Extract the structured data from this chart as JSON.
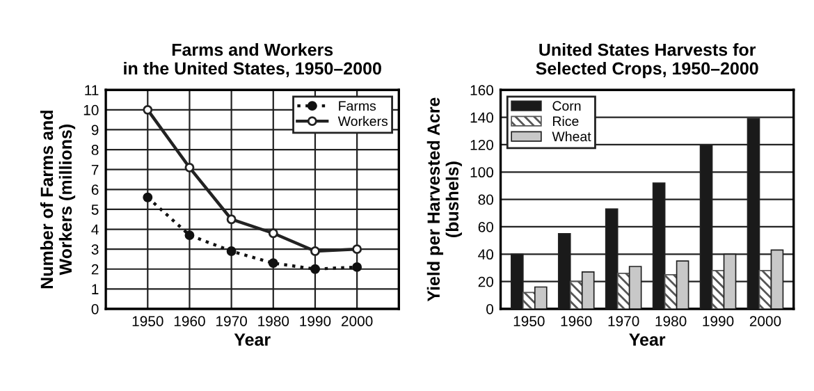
{
  "chart_data": [
    {
      "type": "line",
      "title": "Farms and Workers\nin the United States, 1950–2000",
      "xlabel": "Year",
      "ylabel": "Number of Farms and\nWorkers (millions)",
      "x": [
        1950,
        1960,
        1970,
        1980,
        1990,
        2000
      ],
      "series": [
        {
          "name": "Farms",
          "color": "#111111",
          "values": [
            5.6,
            3.7,
            2.9,
            2.3,
            2.0,
            2.1
          ],
          "line_style": "dotted",
          "marker": "circle"
        },
        {
          "name": "Workers",
          "color": "#222222",
          "values": [
            10.0,
            7.1,
            4.5,
            3.8,
            2.9,
            3.0
          ],
          "line_style": "solid",
          "marker": "circle"
        }
      ],
      "xlim": [
        1940,
        2010
      ],
      "xticks": [
        1950,
        1960,
        1970,
        1980,
        1990,
        2000
      ],
      "ylim": [
        0,
        11
      ],
      "yticks": [
        0,
        1,
        2,
        3,
        4,
        5,
        6,
        7,
        8,
        9,
        10,
        11
      ],
      "grid": true,
      "legend": "top right"
    },
    {
      "type": "bar",
      "title": "United States Harvests for\nSelected Crops, 1950–2000",
      "xlabel": "Year",
      "ylabel": "Yield per Harvested Acre\n(bushels)",
      "categories": [
        "1950",
        "1960",
        "1970",
        "1980",
        "1990",
        "2000"
      ],
      "series": [
        {
          "name": "Corn",
          "color": "#1a1a1a",
          "values": [
            40,
            55,
            73,
            92,
            120,
            139
          ]
        },
        {
          "name": "Rice",
          "color": "#555555",
          "values": [
            12,
            20,
            26,
            25,
            28,
            28
          ]
        },
        {
          "name": "Wheat",
          "color": "#c8c8c8",
          "values": [
            16,
            27,
            31,
            35,
            40,
            43
          ]
        }
      ],
      "ylim": [
        0,
        160
      ],
      "yticks": [
        0,
        20,
        40,
        60,
        80,
        100,
        120,
        140,
        160
      ],
      "grid": "y",
      "legend": "top left"
    }
  ]
}
